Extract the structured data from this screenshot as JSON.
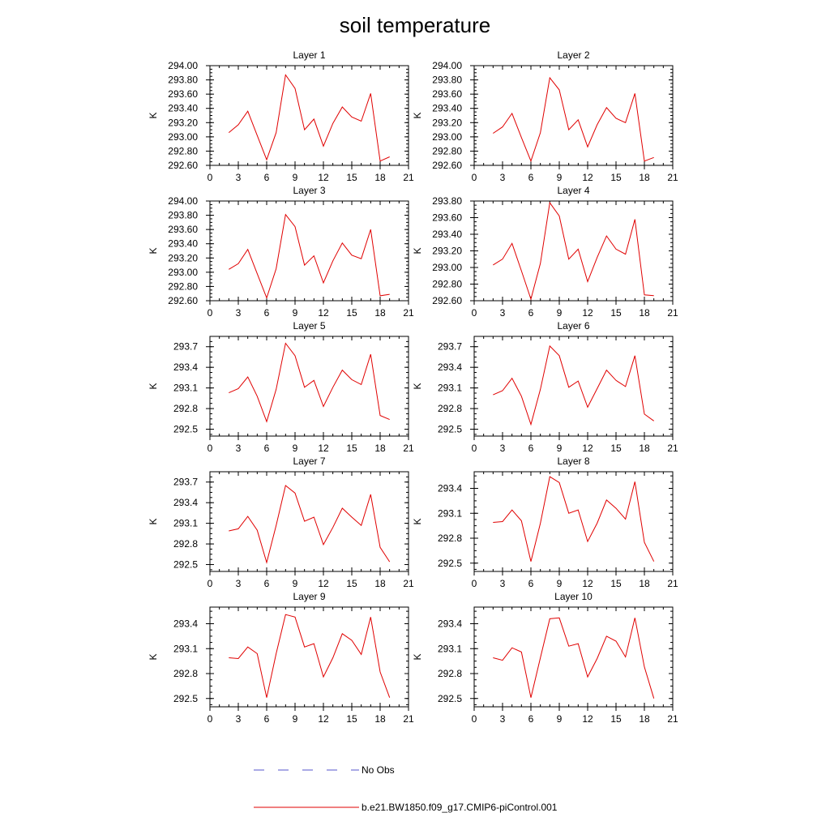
{
  "figure": {
    "title": "soil temperature"
  },
  "chart_data": [
    {
      "type": "line",
      "title": "Layer 1",
      "ylabel": "K",
      "xlim": [
        0,
        21
      ],
      "xticks": [
        0,
        3,
        6,
        9,
        12,
        15,
        18,
        21
      ],
      "ylim": [
        292.6,
        294.0
      ],
      "yticks": [
        "292.60",
        "292.80",
        "293.00",
        "293.20",
        "293.40",
        "293.60",
        "293.80",
        "294.00"
      ],
      "x": [
        2,
        3,
        4,
        5,
        6,
        7,
        8,
        9,
        10,
        11,
        12,
        13,
        14,
        15,
        16,
        17,
        18,
        19
      ],
      "series": [
        {
          "values": [
            293.06,
            293.17,
            293.36,
            293.02,
            292.68,
            293.06,
            293.87,
            293.68,
            293.1,
            293.25,
            292.87,
            293.19,
            293.42,
            293.28,
            293.22,
            293.61,
            292.66,
            292.72
          ]
        }
      ]
    },
    {
      "type": "line",
      "title": "Layer 2",
      "ylabel": "K",
      "xlim": [
        0,
        21
      ],
      "xticks": [
        0,
        3,
        6,
        9,
        12,
        15,
        18,
        21
      ],
      "ylim": [
        292.6,
        294.0
      ],
      "yticks": [
        "292.60",
        "292.80",
        "293.00",
        "293.20",
        "293.40",
        "293.60",
        "293.80",
        "294.00"
      ],
      "x": [
        2,
        3,
        4,
        5,
        6,
        7,
        8,
        9,
        10,
        11,
        12,
        13,
        14,
        15,
        16,
        17,
        18,
        19
      ],
      "series": [
        {
          "values": [
            293.05,
            293.14,
            293.33,
            292.99,
            292.66,
            293.06,
            293.83,
            293.66,
            293.1,
            293.24,
            292.86,
            293.17,
            293.41,
            293.26,
            293.2,
            293.61,
            292.66,
            292.71
          ]
        }
      ]
    },
    {
      "type": "line",
      "title": "Layer 3",
      "ylabel": "K",
      "xlim": [
        0,
        21
      ],
      "xticks": [
        0,
        3,
        6,
        9,
        12,
        15,
        18,
        21
      ],
      "ylim": [
        292.6,
        294.0
      ],
      "yticks": [
        "292.60",
        "292.80",
        "293.00",
        "293.20",
        "293.40",
        "293.60",
        "293.80",
        "294.00"
      ],
      "x": [
        2,
        3,
        4,
        5,
        6,
        7,
        8,
        9,
        10,
        11,
        12,
        13,
        14,
        15,
        16,
        17,
        18,
        19
      ],
      "series": [
        {
          "values": [
            293.04,
            293.12,
            293.32,
            292.98,
            292.64,
            293.05,
            293.81,
            293.64,
            293.1,
            293.23,
            292.85,
            293.16,
            293.41,
            293.24,
            293.19,
            293.6,
            292.67,
            292.69
          ]
        }
      ]
    },
    {
      "type": "line",
      "title": "Layer 4",
      "ylabel": "K",
      "xlim": [
        0,
        21
      ],
      "xticks": [
        0,
        3,
        6,
        9,
        12,
        15,
        18,
        21
      ],
      "ylim": [
        292.6,
        293.8
      ],
      "yticks": [
        "292.60",
        "292.80",
        "293.00",
        "293.20",
        "293.40",
        "293.60",
        "293.80"
      ],
      "x": [
        2,
        3,
        4,
        5,
        6,
        7,
        8,
        9,
        10,
        11,
        12,
        13,
        14,
        15,
        16,
        17,
        18,
        19
      ],
      "series": [
        {
          "values": [
            293.03,
            293.1,
            293.29,
            292.96,
            292.62,
            293.05,
            293.78,
            293.62,
            293.1,
            293.22,
            292.83,
            293.12,
            293.38,
            293.22,
            293.16,
            293.58,
            292.67,
            292.66
          ]
        }
      ]
    },
    {
      "type": "line",
      "title": "Layer 5",
      "ylabel": "K",
      "xlim": [
        0,
        21
      ],
      "xticks": [
        0,
        3,
        6,
        9,
        12,
        15,
        18,
        21
      ],
      "ylim": [
        292.4,
        293.85
      ],
      "yticks": [
        "292.5",
        "292.8",
        "293.1",
        "293.4",
        "293.7"
      ],
      "x": [
        2,
        3,
        4,
        5,
        6,
        7,
        8,
        9,
        10,
        11,
        12,
        13,
        14,
        15,
        16,
        17,
        18,
        19
      ],
      "series": [
        {
          "values": [
            293.03,
            293.09,
            293.26,
            292.98,
            292.61,
            293.08,
            293.75,
            293.57,
            293.11,
            293.21,
            292.83,
            293.11,
            293.36,
            293.22,
            293.15,
            293.59,
            292.7,
            292.64
          ]
        }
      ]
    },
    {
      "type": "line",
      "title": "Layer 6",
      "ylabel": "K",
      "xlim": [
        0,
        21
      ],
      "xticks": [
        0,
        3,
        6,
        9,
        12,
        15,
        18,
        21
      ],
      "ylim": [
        292.4,
        293.85
      ],
      "yticks": [
        "292.5",
        "292.8",
        "293.1",
        "293.4",
        "293.7"
      ],
      "x": [
        2,
        3,
        4,
        5,
        6,
        7,
        8,
        9,
        10,
        11,
        12,
        13,
        14,
        15,
        16,
        17,
        18,
        19
      ],
      "series": [
        {
          "values": [
            293.0,
            293.06,
            293.24,
            292.98,
            292.57,
            293.08,
            293.71,
            293.57,
            293.11,
            293.2,
            292.82,
            293.09,
            293.36,
            293.21,
            293.12,
            293.57,
            292.72,
            292.62
          ]
        }
      ]
    },
    {
      "type": "line",
      "title": "Layer 7",
      "ylabel": "K",
      "xlim": [
        0,
        21
      ],
      "xticks": [
        0,
        3,
        6,
        9,
        12,
        15,
        18,
        21
      ],
      "ylim": [
        292.4,
        293.85
      ],
      "yticks": [
        "292.5",
        "292.8",
        "293.1",
        "293.4",
        "293.7"
      ],
      "x": [
        2,
        3,
        4,
        5,
        6,
        7,
        8,
        9,
        10,
        11,
        12,
        13,
        14,
        15,
        16,
        17,
        18,
        19
      ],
      "series": [
        {
          "values": [
            292.99,
            293.02,
            293.2,
            293.0,
            292.53,
            293.07,
            293.65,
            293.54,
            293.13,
            293.19,
            292.79,
            293.04,
            293.32,
            293.19,
            293.07,
            293.52,
            292.75,
            292.54
          ]
        }
      ]
    },
    {
      "type": "line",
      "title": "Layer 8",
      "ylabel": "K",
      "xlim": [
        0,
        21
      ],
      "xticks": [
        0,
        3,
        6,
        9,
        12,
        15,
        18,
        21
      ],
      "ylim": [
        292.4,
        293.6
      ],
      "yticks": [
        "292.5",
        "292.8",
        "293.1",
        "293.4"
      ],
      "x": [
        2,
        3,
        4,
        5,
        6,
        7,
        8,
        9,
        10,
        11,
        12,
        13,
        14,
        15,
        16,
        17,
        18,
        19
      ],
      "series": [
        {
          "values": [
            292.99,
            293.0,
            293.14,
            293.01,
            292.52,
            292.98,
            293.54,
            293.47,
            293.1,
            293.14,
            292.76,
            292.98,
            293.26,
            293.16,
            293.03,
            293.48,
            292.75,
            292.52
          ]
        }
      ]
    },
    {
      "type": "line",
      "title": "Layer 9",
      "ylabel": "K",
      "xlim": [
        0,
        21
      ],
      "xticks": [
        0,
        3,
        6,
        9,
        12,
        15,
        18,
        21
      ],
      "ylim": [
        292.4,
        293.6
      ],
      "yticks": [
        "292.5",
        "292.8",
        "293.1",
        "293.4"
      ],
      "x": [
        2,
        3,
        4,
        5,
        6,
        7,
        8,
        9,
        10,
        11,
        12,
        13,
        14,
        15,
        16,
        17,
        18,
        19
      ],
      "series": [
        {
          "values": [
            292.99,
            292.98,
            293.12,
            293.04,
            292.51,
            293.04,
            293.51,
            293.48,
            293.12,
            293.16,
            292.76,
            292.99,
            293.28,
            293.2,
            293.03,
            293.48,
            292.82,
            292.51
          ]
        }
      ]
    },
    {
      "type": "line",
      "title": "Layer 10",
      "ylabel": "K",
      "xlim": [
        0,
        21
      ],
      "xticks": [
        0,
        3,
        6,
        9,
        12,
        15,
        18,
        21
      ],
      "ylim": [
        292.4,
        293.6
      ],
      "yticks": [
        "292.5",
        "292.8",
        "293.1",
        "293.4"
      ],
      "x": [
        2,
        3,
        4,
        5,
        6,
        7,
        8,
        9,
        10,
        11,
        12,
        13,
        14,
        15,
        16,
        17,
        18,
        19
      ],
      "series": [
        {
          "values": [
            292.99,
            292.96,
            293.11,
            293.06,
            292.51,
            292.99,
            293.46,
            293.47,
            293.13,
            293.16,
            292.76,
            292.98,
            293.25,
            293.19,
            293.0,
            293.47,
            292.88,
            292.5
          ]
        }
      ]
    }
  ],
  "legend": {
    "items": [
      {
        "label": "No Obs",
        "style": "dashed",
        "color": "#5555cc"
      },
      {
        "label": "b.e21.BW1850.f09_g17.CMIP6-piControl.001",
        "style": "solid",
        "color": "#e00000"
      }
    ]
  },
  "colors": {
    "series_line": "#e00000",
    "axis": "#000000",
    "no_obs": "#5555cc"
  }
}
